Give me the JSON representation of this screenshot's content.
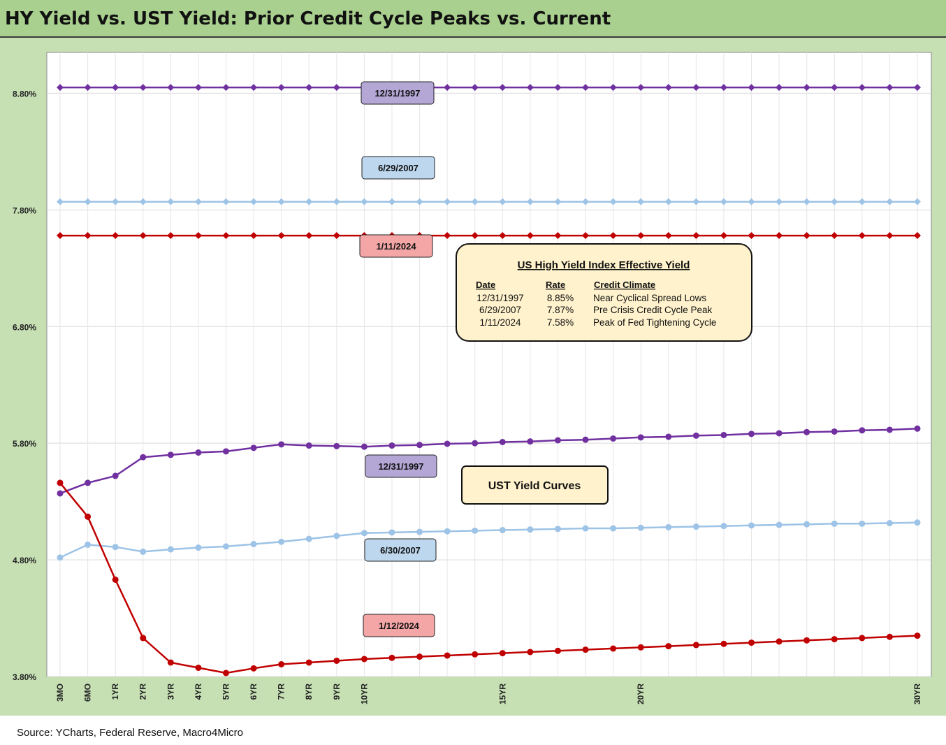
{
  "title": "HY Yield vs. UST Yield: Prior Credit Cycle Peaks vs. Current",
  "source": "Source: YCharts, Federal Reserve, Macro4Micro",
  "chart_data": {
    "type": "line",
    "title": "HY Yield vs. UST Yield: Prior Credit Cycle Peaks vs. Current",
    "xlabel": "",
    "ylabel": "",
    "ylim": [
      3.8,
      9.15
    ],
    "y_ticks": [
      "3.80%",
      "4.80%",
      "5.80%",
      "6.80%",
      "7.80%",
      "8.80%"
    ],
    "x_tick_labels": [
      {
        "index": 0,
        "label": "3MO"
      },
      {
        "index": 1,
        "label": "6MO"
      },
      {
        "index": 2,
        "label": "1YR"
      },
      {
        "index": 3,
        "label": "2YR"
      },
      {
        "index": 4,
        "label": "3YR"
      },
      {
        "index": 5,
        "label": "4YR"
      },
      {
        "index": 6,
        "label": "5YR"
      },
      {
        "index": 7,
        "label": "6YR"
      },
      {
        "index": 8,
        "label": "7YR"
      },
      {
        "index": 9,
        "label": "8YR"
      },
      {
        "index": 10,
        "label": "9YR"
      },
      {
        "index": 11,
        "label": "10YR"
      },
      {
        "index": 16,
        "label": "15YR"
      },
      {
        "index": 21,
        "label": "20YR"
      },
      {
        "index": 31,
        "label": "30YR"
      }
    ],
    "point_count": 32,
    "grid": true,
    "series": [
      {
        "name": "12/31/1997",
        "kind": "hy",
        "color": "#7030a0",
        "marker": "diamond",
        "constant": 8.85
      },
      {
        "name": "6/29/2007",
        "kind": "hy",
        "color": "#9dc3e6",
        "marker": "diamond",
        "constant": 7.87
      },
      {
        "name": "1/11/2024",
        "kind": "hy",
        "color": "#c00000",
        "marker": "diamond",
        "constant": 7.58
      },
      {
        "name": "12/31/1997",
        "kind": "ust",
        "color": "#7030a0",
        "marker": "circle",
        "values": [
          5.37,
          5.46,
          5.52,
          5.68,
          5.7,
          5.72,
          5.73,
          5.76,
          5.79,
          5.78,
          5.775,
          5.77,
          5.78,
          5.785,
          5.795,
          5.8,
          5.81,
          5.815,
          5.825,
          5.83,
          5.84,
          5.85,
          5.855,
          5.865,
          5.87,
          5.88,
          5.885,
          5.895,
          5.9,
          5.91,
          5.915,
          5.925
        ]
      },
      {
        "name": "6/30/2007",
        "kind": "ust",
        "color": "#9dc3e6",
        "marker": "circle",
        "values": [
          4.82,
          4.93,
          4.91,
          4.87,
          4.89,
          4.905,
          4.915,
          4.935,
          4.955,
          4.98,
          5.005,
          5.03,
          5.035,
          5.04,
          5.045,
          5.05,
          5.055,
          5.06,
          5.065,
          5.07,
          5.07,
          5.075,
          5.08,
          5.085,
          5.09,
          5.095,
          5.1,
          5.105,
          5.11,
          5.11,
          5.115,
          5.12
        ]
      },
      {
        "name": "1/12/2024",
        "kind": "ust",
        "color": "#c00000",
        "marker": "circle",
        "values": [
          5.46,
          5.17,
          4.63,
          4.13,
          3.92,
          3.875,
          3.83,
          3.87,
          3.905,
          3.92,
          3.935,
          3.95,
          3.96,
          3.97,
          3.98,
          3.99,
          4.0,
          4.01,
          4.02,
          4.03,
          4.04,
          4.05,
          4.06,
          4.07,
          4.08,
          4.09,
          4.1,
          4.11,
          4.12,
          4.13,
          4.14,
          4.15
        ]
      }
    ],
    "callouts": [
      {
        "label": "12/31/1997",
        "fill": "#b4a7d6"
      },
      {
        "label": "6/29/2007",
        "fill": "#bdd7ee"
      },
      {
        "label": "1/11/2024",
        "fill": "#f4a6a6"
      },
      {
        "label": "12/31/1997",
        "fill": "#b4a7d6"
      },
      {
        "label": "6/30/2007",
        "fill": "#bdd7ee"
      },
      {
        "label": "1/12/2024",
        "fill": "#f4a6a6"
      }
    ]
  },
  "hy_box": {
    "title": "US High Yield Index Effective Yield",
    "headers": [
      "Date",
      "Rate",
      "Credit Climate"
    ],
    "rows": [
      [
        "12/31/1997",
        "8.85%",
        "Near Cyclical Spread Lows"
      ],
      [
        "6/29/2007",
        "7.87%",
        "Pre Crisis Credit Cycle Peak"
      ],
      [
        "1/11/2024",
        "7.58%",
        "Peak of Fed Tightening Cycle"
      ]
    ],
    "fill": "#fff2cc"
  },
  "ust_box": {
    "label": "UST Yield Curves",
    "fill": "#fff2cc"
  }
}
